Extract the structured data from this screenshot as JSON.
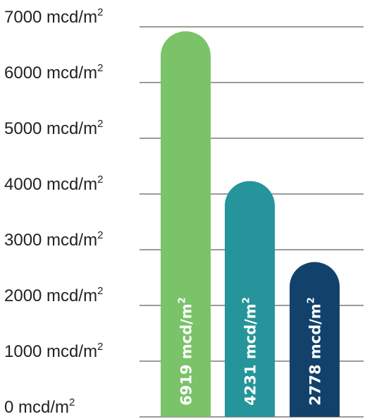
{
  "chart_data": {
    "type": "bar",
    "title": "",
    "xlabel": "",
    "ylabel": "",
    "unit": "mcd/m",
    "unit_superscript": "2",
    "ylim": [
      0,
      7000
    ],
    "yticks": [
      0,
      1000,
      2000,
      3000,
      4000,
      5000,
      6000,
      7000
    ],
    "grid": true,
    "categories": [
      "",
      "",
      ""
    ],
    "values": [
      6919,
      4231,
      2778
    ],
    "colors": [
      "#7ac369",
      "#25959b",
      "#12426b"
    ]
  }
}
